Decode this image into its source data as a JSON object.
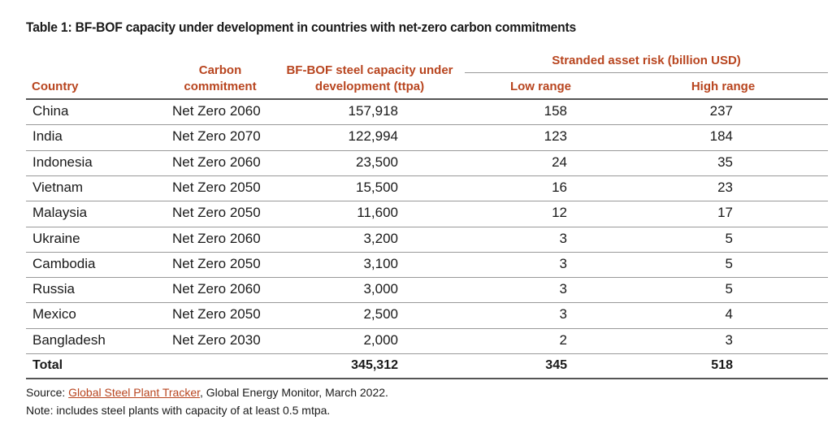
{
  "title": "Table 1: BF-BOF capacity under development in countries with net-zero carbon commitments",
  "headers": {
    "country": "Country",
    "commitment_line1": "Carbon",
    "commitment_line2": "commitment",
    "capacity_line1": "BF-BOF steel capacity under",
    "capacity_line2": "development (ttpa)",
    "stranded": "Stranded asset risk (billion USD)",
    "low": "Low range",
    "high": "High range"
  },
  "rows": [
    {
      "country": "China",
      "commitment": "Net Zero 2060",
      "capacity": "157,918",
      "low": "158",
      "high": "237"
    },
    {
      "country": "India",
      "commitment": "Net Zero 2070",
      "capacity": "122,994",
      "low": "123",
      "high": "184"
    },
    {
      "country": "Indonesia",
      "commitment": "Net Zero 2060",
      "capacity": "23,500",
      "low": "24",
      "high": "35"
    },
    {
      "country": "Vietnam",
      "commitment": "Net Zero 2050",
      "capacity": "15,500",
      "low": "16",
      "high": "23"
    },
    {
      "country": "Malaysia",
      "commitment": "Net Zero 2050",
      "capacity": "11,600",
      "low": "12",
      "high": "17"
    },
    {
      "country": "Ukraine",
      "commitment": "Net Zero 2060",
      "capacity": "3,200",
      "low": "3",
      "high": "5"
    },
    {
      "country": "Cambodia",
      "commitment": "Net Zero 2050",
      "capacity": "3,100",
      "low": "3",
      "high": "5"
    },
    {
      "country": "Russia",
      "commitment": "Net Zero 2060",
      "capacity": "3,000",
      "low": "3",
      "high": "5"
    },
    {
      "country": "Mexico",
      "commitment": "Net Zero 2050",
      "capacity": "2,500",
      "low": "3",
      "high": "4"
    },
    {
      "country": "Bangladesh",
      "commitment": "Net Zero 2030",
      "capacity": "2,000",
      "low": "2",
      "high": "3"
    }
  ],
  "total": {
    "label": "Total",
    "capacity": "345,312",
    "low": "345",
    "high": "518"
  },
  "footer": {
    "source_prefix": "Source: ",
    "source_link": "Global Steel Plant Tracker",
    "source_suffix": ", Global Energy Monitor, March 2022.",
    "note": "Note: includes steel plants with capacity of at least 0.5 mtpa."
  },
  "colors": {
    "accent": "#b8451f",
    "text": "#1a1a1a",
    "rule": "#999999"
  }
}
